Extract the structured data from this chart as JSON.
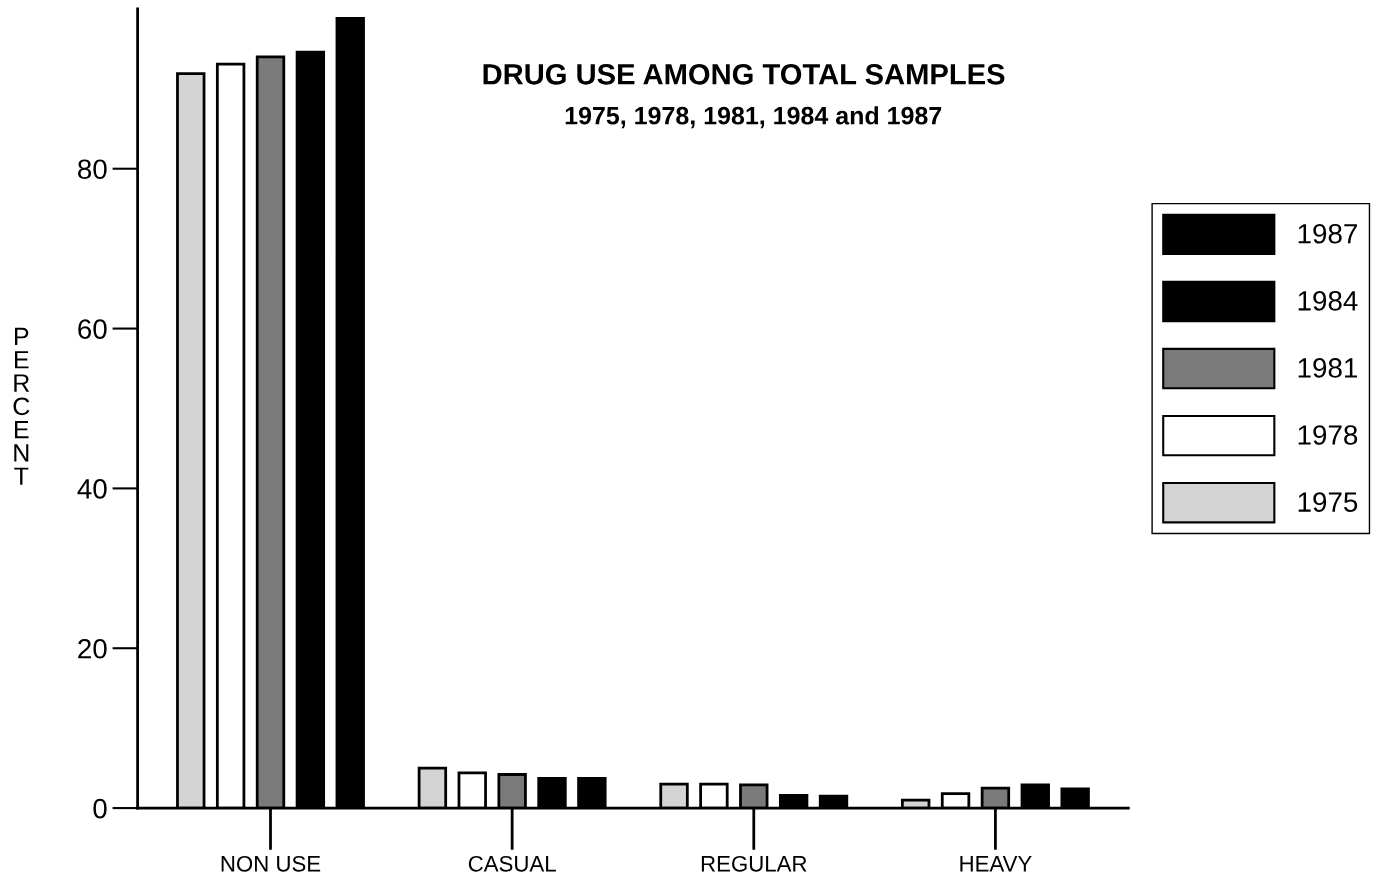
{
  "chart_data": {
    "type": "bar",
    "title": "DRUG USE AMONG TOTAL SAMPLES",
    "subtitle": "1975, 1978, 1981, 1984 and 1987",
    "ylabel": "PERCENT",
    "categories": [
      "NON USE",
      "CASUAL",
      "REGULAR",
      "HEAVY"
    ],
    "series": [
      {
        "name": "1975",
        "color": "#d4d4d4",
        "values": [
          91.9,
          5.0,
          3.0,
          1.0
        ]
      },
      {
        "name": "1978",
        "color": "#ffffff",
        "values": [
          93.1,
          4.4,
          3.0,
          1.8
        ]
      },
      {
        "name": "1981",
        "color": "#7a7a7a",
        "values": [
          94.0,
          4.2,
          2.9,
          2.5
        ]
      },
      {
        "name": "1984",
        "color": "#000000",
        "values": [
          94.6,
          3.7,
          1.6,
          2.9
        ]
      },
      {
        "name": "1987",
        "color": "#000000",
        "values": [
          98.8,
          3.7,
          1.5,
          2.4
        ]
      }
    ],
    "ylim": [
      0,
      100
    ],
    "yticks": [
      0,
      20,
      40,
      60,
      80
    ],
    "grid": false,
    "legend": "right"
  }
}
